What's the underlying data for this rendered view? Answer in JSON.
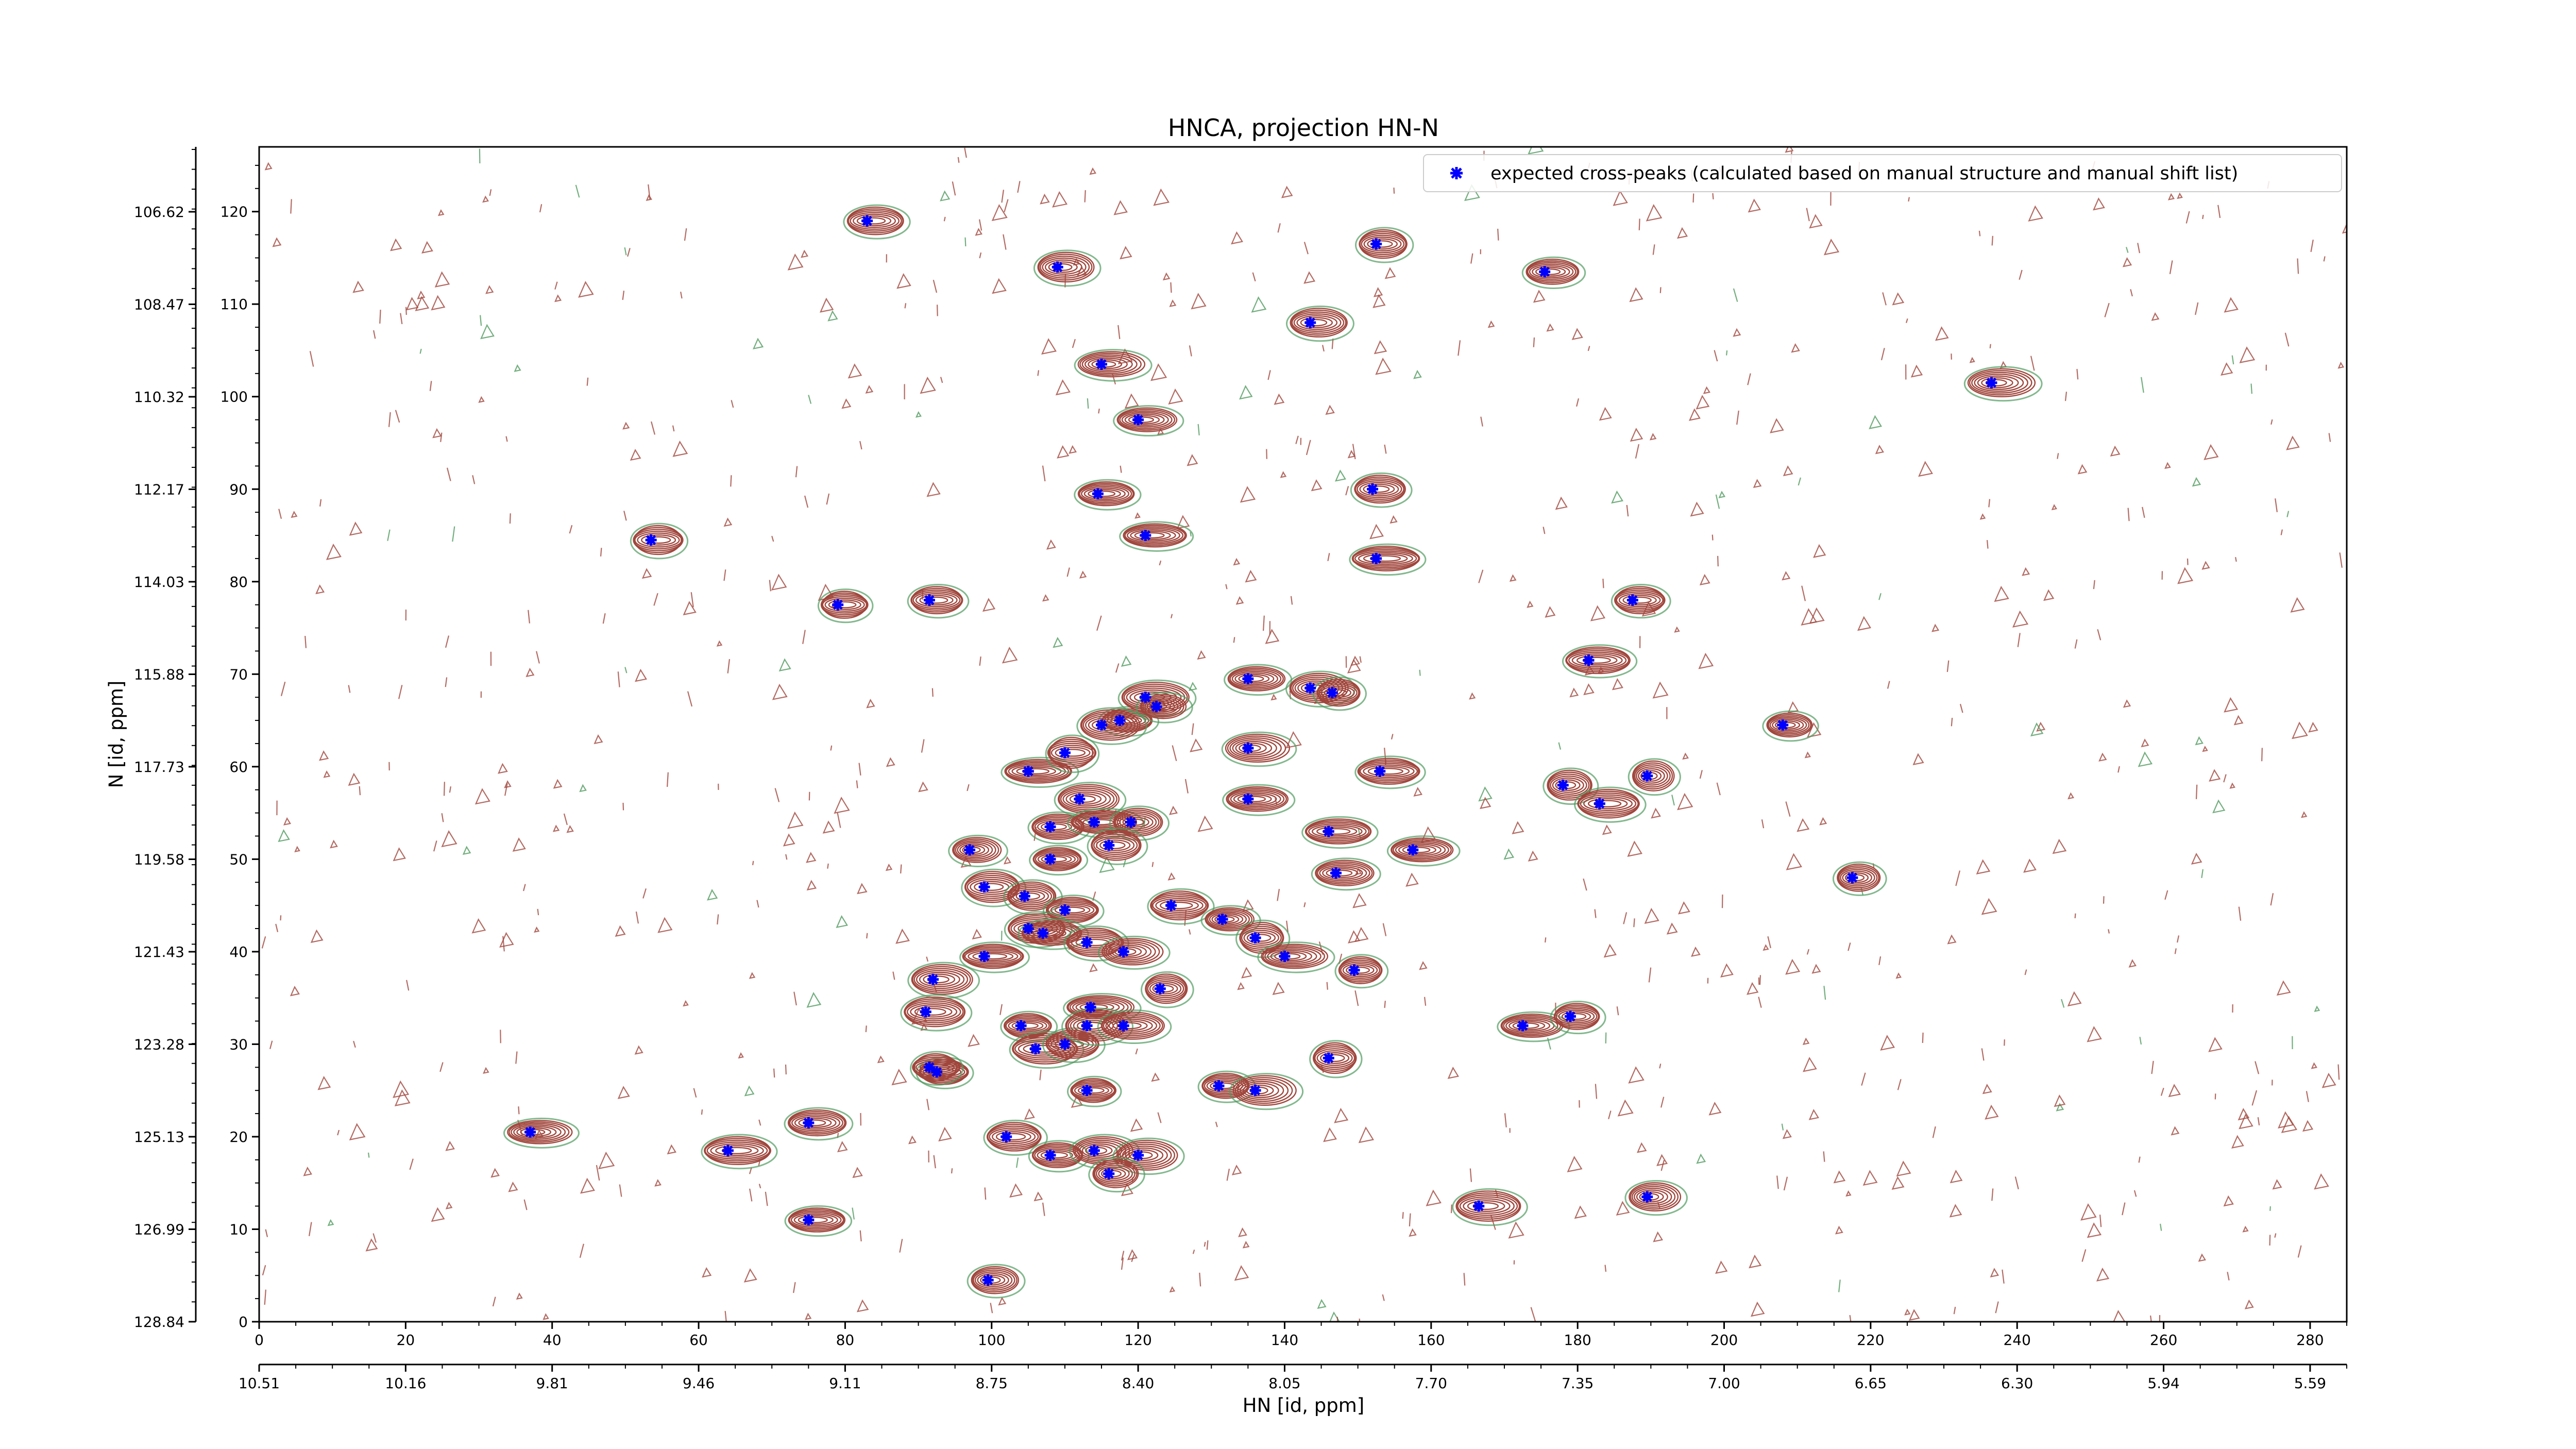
{
  "chart_data": {
    "type": "scatter",
    "title": "HNCA, projection HN-N",
    "xlabel": "HN [id, ppm]",
    "ylabel": "N [id, ppm]",
    "xlim": [
      0,
      285
    ],
    "ylim": [
      0,
      127
    ],
    "x_ticks": [
      0,
      20,
      40,
      60,
      80,
      100,
      120,
      140,
      160,
      180,
      200,
      220,
      240,
      260,
      280
    ],
    "y_ticks": [
      0,
      10,
      20,
      30,
      40,
      50,
      60,
      70,
      80,
      90,
      100,
      110,
      120
    ],
    "x2_tick_labels": [
      "10.51",
      "10.16",
      "9.81",
      "9.46",
      "9.11",
      "8.75",
      "8.40",
      "8.05",
      "7.70",
      "7.35",
      "7.00",
      "6.65",
      "6.30",
      "5.94",
      "5.59"
    ],
    "y2_tick_labels": [
      "128.84",
      "126.99",
      "125.13",
      "123.28",
      "121.43",
      "119.58",
      "117.73",
      "115.88",
      "114.03",
      "112.17",
      "110.32",
      "108.47",
      "106.62"
    ],
    "legend": {
      "label": "expected cross-peaks (calculated based on manual structure and manual shift list)",
      "placement": "upper-right",
      "marker_color": "#0000ff"
    },
    "grid": false,
    "contour_colors": {
      "positive": "#a0463c",
      "negative": "#4f9a5e"
    },
    "series": [
      {
        "name": "expected cross-peaks (calculated based on manual structure and manual shift list)",
        "color": "#0000ff",
        "points": [
          [
            83,
            119
          ],
          [
            109,
            114
          ],
          [
            115,
            103.5
          ],
          [
            120,
            97.5
          ],
          [
            143.5,
            108
          ],
          [
            152.5,
            116.5
          ],
          [
            175.5,
            113.5
          ],
          [
            236.5,
            101.5
          ],
          [
            114.5,
            89.5
          ],
          [
            152,
            90
          ],
          [
            53.5,
            84.5
          ],
          [
            121,
            85
          ],
          [
            152.5,
            82.5
          ],
          [
            79,
            77.5
          ],
          [
            91.5,
            78
          ],
          [
            187.5,
            78
          ],
          [
            181.5,
            71.5
          ],
          [
            135,
            69.5
          ],
          [
            143.5,
            68.5
          ],
          [
            146.5,
            68
          ],
          [
            117.5,
            65
          ],
          [
            121,
            67.5
          ],
          [
            122.5,
            66.5
          ],
          [
            115,
            64.5
          ],
          [
            135,
            62
          ],
          [
            105,
            59.5
          ],
          [
            110,
            61.5
          ],
          [
            153,
            59.5
          ],
          [
            178,
            58
          ],
          [
            189.5,
            59
          ],
          [
            208,
            64.5
          ],
          [
            112,
            56.5
          ],
          [
            135,
            56.5
          ],
          [
            183,
            56
          ],
          [
            108,
            53.5
          ],
          [
            114,
            54
          ],
          [
            119,
            54
          ],
          [
            116,
            51.5
          ],
          [
            146,
            53
          ],
          [
            147,
            48.5
          ],
          [
            157.5,
            51
          ],
          [
            217.5,
            48
          ],
          [
            97,
            51
          ],
          [
            99,
            47
          ],
          [
            104.5,
            46
          ],
          [
            108,
            50
          ],
          [
            110,
            44.5
          ],
          [
            124.5,
            45
          ],
          [
            105,
            42.5
          ],
          [
            107,
            42
          ],
          [
            99,
            39.5
          ],
          [
            113,
            41
          ],
          [
            118,
            40
          ],
          [
            131.5,
            43.5
          ],
          [
            136,
            41.5
          ],
          [
            140,
            39.5
          ],
          [
            149.5,
            38
          ],
          [
            92,
            37
          ],
          [
            123,
            36
          ],
          [
            91,
            33.5
          ],
          [
            104,
            32
          ],
          [
            113.5,
            34
          ],
          [
            106,
            29.5
          ],
          [
            110,
            30
          ],
          [
            113,
            32
          ],
          [
            118,
            32
          ],
          [
            172.5,
            32
          ],
          [
            179,
            33
          ],
          [
            92.5,
            27
          ],
          [
            91.5,
            27.5
          ],
          [
            146,
            28.5
          ],
          [
            113,
            25
          ],
          [
            131,
            25.5
          ],
          [
            136,
            25
          ],
          [
            37,
            20.5
          ],
          [
            75,
            21.5
          ],
          [
            102,
            20
          ],
          [
            64,
            18.5
          ],
          [
            108,
            18
          ],
          [
            114,
            18.5
          ],
          [
            120,
            18
          ],
          [
            116,
            16
          ],
          [
            166.5,
            12.5
          ],
          [
            189.5,
            13.5
          ],
          [
            75,
            11
          ],
          [
            99.5,
            4.5
          ]
        ]
      }
    ]
  }
}
